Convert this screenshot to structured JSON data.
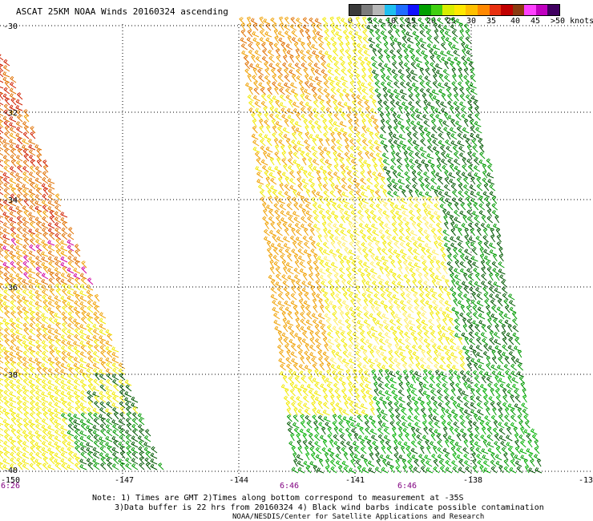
{
  "title": "ASCAT 25KM NOAA Winds 20160324 ascending",
  "legend": {
    "colors": [
      "#3a3a3a",
      "#7b7b7b",
      "#b7b7b7",
      "#1fbff0",
      "#1f6dff",
      "#1010ff",
      "#00a000",
      "#40d010",
      "#d8ee00",
      "#ffe800",
      "#ffc000",
      "#ff8800",
      "#e83010",
      "#c00000",
      "#8a3a10",
      "#ff40ff",
      "#c000c0",
      "#400060"
    ],
    "labels": [
      "0",
      "5",
      "10",
      "15",
      "20",
      "25",
      "30",
      "35",
      "40",
      "45",
      ">50 knots"
    ]
  },
  "axes": {
    "lat_labels": [
      "-30",
      "-32",
      "-34",
      "-36",
      "-38",
      "-40"
    ],
    "lon_labels": [
      "-150",
      "-147",
      "-144",
      "-141",
      "-138",
      "-13"
    ]
  },
  "times": [
    "6:26",
    "6:46",
    "6:46"
  ],
  "notes": {
    "line1": "Note: 1) Times are GMT 2)Times along bottom correspond to measurement at -35S",
    "line2": "3)Data buffer is 22 hrs from 20160324 4) Black wind barbs indicate possible contamination",
    "line3": "NOAA/NESDIS/Center for Satellite Applications and Research"
  },
  "wind_colors": {
    "light": "#00b000",
    "green": "#009a00",
    "dark": "#005800",
    "yellow": "#f2ea00",
    "lightyellow": "#ffee66",
    "orange": "#f0a000",
    "darkorange": "#e07000",
    "red": "#d02000",
    "magenta": "#d000a0"
  }
}
